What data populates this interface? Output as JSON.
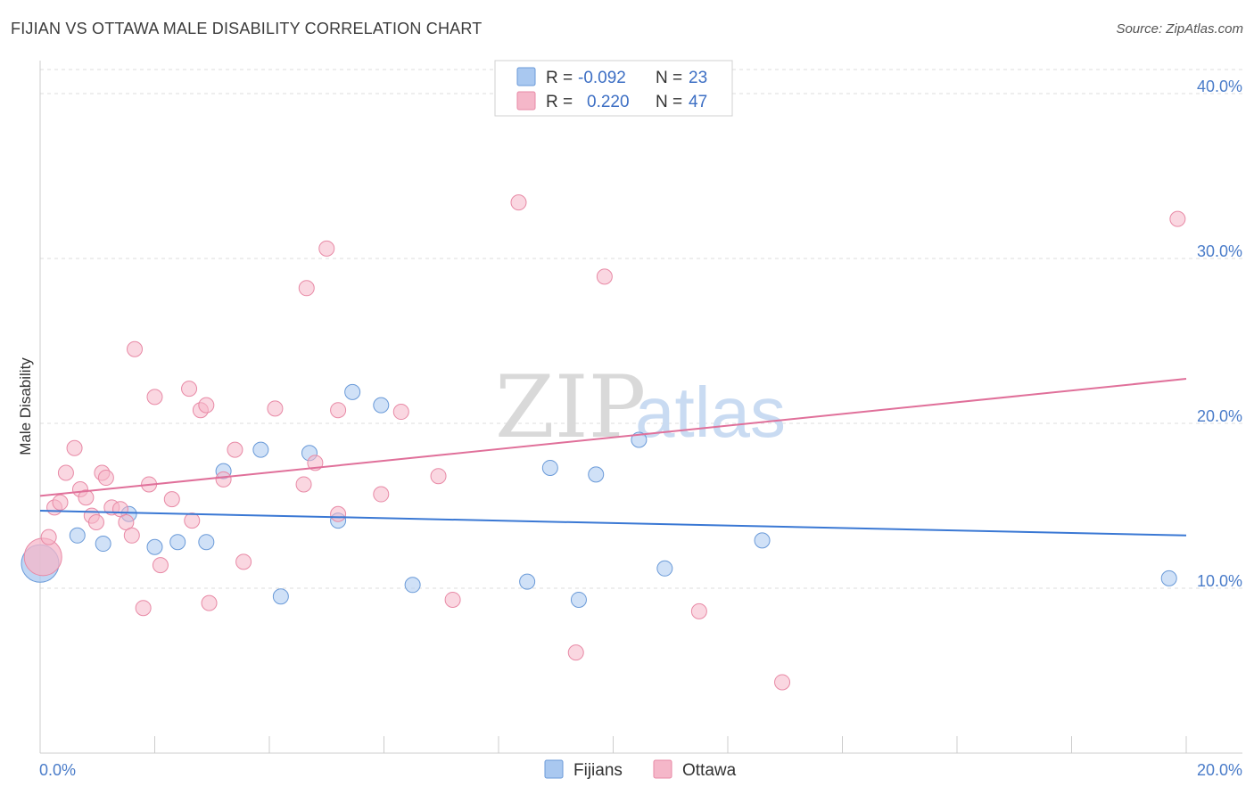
{
  "header": {
    "title": "FIJIAN VS OTTAWA MALE DISABILITY CORRELATION CHART",
    "source": "Source: ZipAtlas.com"
  },
  "watermark": {
    "zip": "ZIP",
    "atlas": "atlas"
  },
  "legend": {
    "rows": [
      {
        "r_label": "R =",
        "r_value": "-0.092",
        "n_label": "N =",
        "n_value": "23",
        "color": "#a9c8f0"
      },
      {
        "r_label": "R =",
        "r_value": "0.220",
        "n_label": "N =",
        "n_value": "47",
        "color": "#f5b7c9"
      }
    ]
  },
  "chart_data": {
    "type": "scatter",
    "ylabel": "Male Disability",
    "xlim": [
      0,
      20
    ],
    "ylim": [
      0,
      42
    ],
    "yticks": [
      10,
      20,
      30,
      40
    ],
    "ytick_labels": [
      "10.0%",
      "20.0%",
      "30.0%",
      "40.0%"
    ],
    "xtick_labels": {
      "min": "0.0%",
      "max": "20.0%"
    },
    "grid": "horizontal-dashed",
    "legend_position": "bottom-center",
    "series": [
      {
        "name": "Fijians",
        "color": "#a9c8f0",
        "stroke": "#6a9ad8",
        "line_color": "#3a78d4",
        "trend": {
          "x": [
            0,
            20
          ],
          "y": [
            14.7,
            13.2
          ]
        },
        "points": [
          {
            "x": 0.0,
            "y": 11.5,
            "big": true
          },
          {
            "x": 0.65,
            "y": 13.2
          },
          {
            "x": 1.1,
            "y": 12.7
          },
          {
            "x": 1.55,
            "y": 14.5
          },
          {
            "x": 2.0,
            "y": 12.5
          },
          {
            "x": 2.4,
            "y": 12.8
          },
          {
            "x": 2.9,
            "y": 12.8
          },
          {
            "x": 3.2,
            "y": 17.1
          },
          {
            "x": 3.85,
            "y": 18.4
          },
          {
            "x": 4.2,
            "y": 9.5
          },
          {
            "x": 4.7,
            "y": 18.2
          },
          {
            "x": 5.2,
            "y": 14.1
          },
          {
            "x": 5.45,
            "y": 21.9
          },
          {
            "x": 5.95,
            "y": 21.1
          },
          {
            "x": 6.5,
            "y": 10.2
          },
          {
            "x": 8.5,
            "y": 10.4
          },
          {
            "x": 8.9,
            "y": 17.3
          },
          {
            "x": 9.4,
            "y": 9.3
          },
          {
            "x": 9.7,
            "y": 16.9
          },
          {
            "x": 10.45,
            "y": 19.0
          },
          {
            "x": 10.9,
            "y": 11.2
          },
          {
            "x": 12.6,
            "y": 12.9
          },
          {
            "x": 19.7,
            "y": 10.6
          }
        ]
      },
      {
        "name": "Ottawa",
        "color": "#f5b7c9",
        "stroke": "#e88aa6",
        "line_color": "#e0709a",
        "trend": {
          "x": [
            0,
            20
          ],
          "y": [
            15.6,
            22.7
          ]
        },
        "points": [
          {
            "x": 0.05,
            "y": 11.9,
            "big": true
          },
          {
            "x": 0.15,
            "y": 13.1
          },
          {
            "x": 0.25,
            "y": 14.9
          },
          {
            "x": 0.35,
            "y": 15.2
          },
          {
            "x": 0.45,
            "y": 17.0
          },
          {
            "x": 0.6,
            "y": 18.5
          },
          {
            "x": 0.7,
            "y": 16.0
          },
          {
            "x": 0.8,
            "y": 15.5
          },
          {
            "x": 0.9,
            "y": 14.4
          },
          {
            "x": 0.98,
            "y": 14.0
          },
          {
            "x": 1.08,
            "y": 17.0
          },
          {
            "x": 1.15,
            "y": 16.7
          },
          {
            "x": 1.25,
            "y": 14.9
          },
          {
            "x": 1.4,
            "y": 14.8
          },
          {
            "x": 1.5,
            "y": 14.0
          },
          {
            "x": 1.6,
            "y": 13.2
          },
          {
            "x": 1.65,
            "y": 24.5
          },
          {
            "x": 1.8,
            "y": 8.8
          },
          {
            "x": 1.9,
            "y": 16.3
          },
          {
            "x": 2.0,
            "y": 21.6
          },
          {
            "x": 2.1,
            "y": 11.4
          },
          {
            "x": 2.3,
            "y": 15.4
          },
          {
            "x": 2.6,
            "y": 22.1
          },
          {
            "x": 2.65,
            "y": 14.1
          },
          {
            "x": 2.8,
            "y": 20.8
          },
          {
            "x": 2.9,
            "y": 21.1
          },
          {
            "x": 2.95,
            "y": 9.1
          },
          {
            "x": 3.2,
            "y": 16.6
          },
          {
            "x": 3.4,
            "y": 18.4
          },
          {
            "x": 3.55,
            "y": 11.6
          },
          {
            "x": 4.1,
            "y": 20.9
          },
          {
            "x": 4.6,
            "y": 16.3
          },
          {
            "x": 4.65,
            "y": 28.2
          },
          {
            "x": 4.8,
            "y": 17.6
          },
          {
            "x": 5.0,
            "y": 30.6
          },
          {
            "x": 5.2,
            "y": 20.8
          },
          {
            "x": 5.2,
            "y": 14.5
          },
          {
            "x": 5.95,
            "y": 15.7
          },
          {
            "x": 6.3,
            "y": 20.7
          },
          {
            "x": 6.95,
            "y": 16.8
          },
          {
            "x": 7.2,
            "y": 9.3
          },
          {
            "x": 8.35,
            "y": 33.4
          },
          {
            "x": 9.35,
            "y": 6.1
          },
          {
            "x": 9.85,
            "y": 28.9
          },
          {
            "x": 11.5,
            "y": 8.6
          },
          {
            "x": 12.95,
            "y": 4.3
          },
          {
            "x": 19.85,
            "y": 32.4
          }
        ]
      }
    ]
  }
}
